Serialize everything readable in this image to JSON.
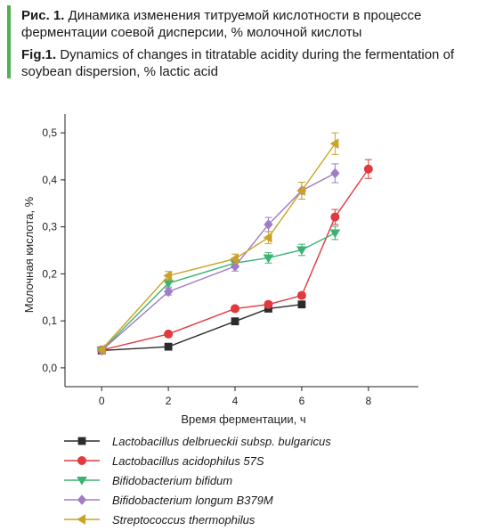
{
  "captions": {
    "ru_prefix": "Рис. 1.",
    "ru_text": "Динамика изменения титруемой кислотности в процессе ферментации соевой дисперсии, % молочной кислоты",
    "en_prefix": "Fig.1.",
    "en_text": "Dynamics of changes in titratable acidity during the fermentation of soybean dispersion, % lactic acid"
  },
  "colors": {
    "accent": "#4fb04f"
  },
  "chart_data": {
    "type": "line",
    "title": "",
    "xlabel": "Время ферментации, ч",
    "ylabel": "Молочная кислота, %",
    "xlim": [
      -1.1,
      9.5
    ],
    "ylim": [
      -0.04,
      0.54
    ],
    "xticks": [
      0,
      2,
      4,
      6,
      8
    ],
    "xtick_labels": [
      "0",
      "2",
      "4",
      "6",
      "8"
    ],
    "yticks": [
      0,
      0.1,
      0.2,
      0.3,
      0.4,
      0.5
    ],
    "ytick_labels": [
      "0,0",
      "0,1",
      "0,2",
      "0,3",
      "0,4",
      "0,5"
    ],
    "grid": false,
    "legend_position": "bottom",
    "error_bars": true,
    "series": [
      {
        "name": "Lactobacillus delbrueckii subsp. bulgaricus",
        "color": "#2b2b2b",
        "marker": "square",
        "x": [
          0,
          2,
          4,
          5,
          6
        ],
        "y": [
          0.037,
          0.045,
          0.099,
          0.126,
          0.135
        ],
        "err": [
          0.003,
          0.003,
          0.004,
          0.004,
          0.004
        ]
      },
      {
        "name": "Lactobacillus acidophilus 57S",
        "color": "#e0393e",
        "marker": "circle",
        "x": [
          0,
          2,
          4,
          5,
          6,
          7,
          8
        ],
        "y": [
          0.038,
          0.072,
          0.126,
          0.135,
          0.154,
          0.321,
          0.423
        ],
        "err": [
          0.003,
          0.004,
          0.005,
          0.006,
          0.006,
          0.016,
          0.02
        ]
      },
      {
        "name": "Bifidobacterium bifidum",
        "color": "#3cb371",
        "marker": "triangle-down",
        "x": [
          0,
          2,
          4,
          5,
          6,
          7
        ],
        "y": [
          0.037,
          0.18,
          0.223,
          0.234,
          0.251,
          0.287
        ],
        "err": [
          0.003,
          0.008,
          0.01,
          0.011,
          0.012,
          0.014
        ]
      },
      {
        "name": "Bifidobacterium longum B379M",
        "color": "#a07cc5",
        "marker": "diamond",
        "x": [
          0,
          2,
          4,
          5,
          6,
          7
        ],
        "y": [
          0.037,
          0.162,
          0.216,
          0.305,
          0.377,
          0.414
        ],
        "err": [
          0.003,
          0.007,
          0.01,
          0.015,
          0.018,
          0.02
        ]
      },
      {
        "name": "Streptococcus thermophilus",
        "color": "#c9a227",
        "marker": "triangle-left",
        "x": [
          0,
          2,
          4,
          5,
          6,
          7
        ],
        "y": [
          0.039,
          0.196,
          0.232,
          0.277,
          0.377,
          0.477
        ],
        "err": [
          0.003,
          0.009,
          0.01,
          0.013,
          0.018,
          0.023
        ]
      }
    ]
  }
}
